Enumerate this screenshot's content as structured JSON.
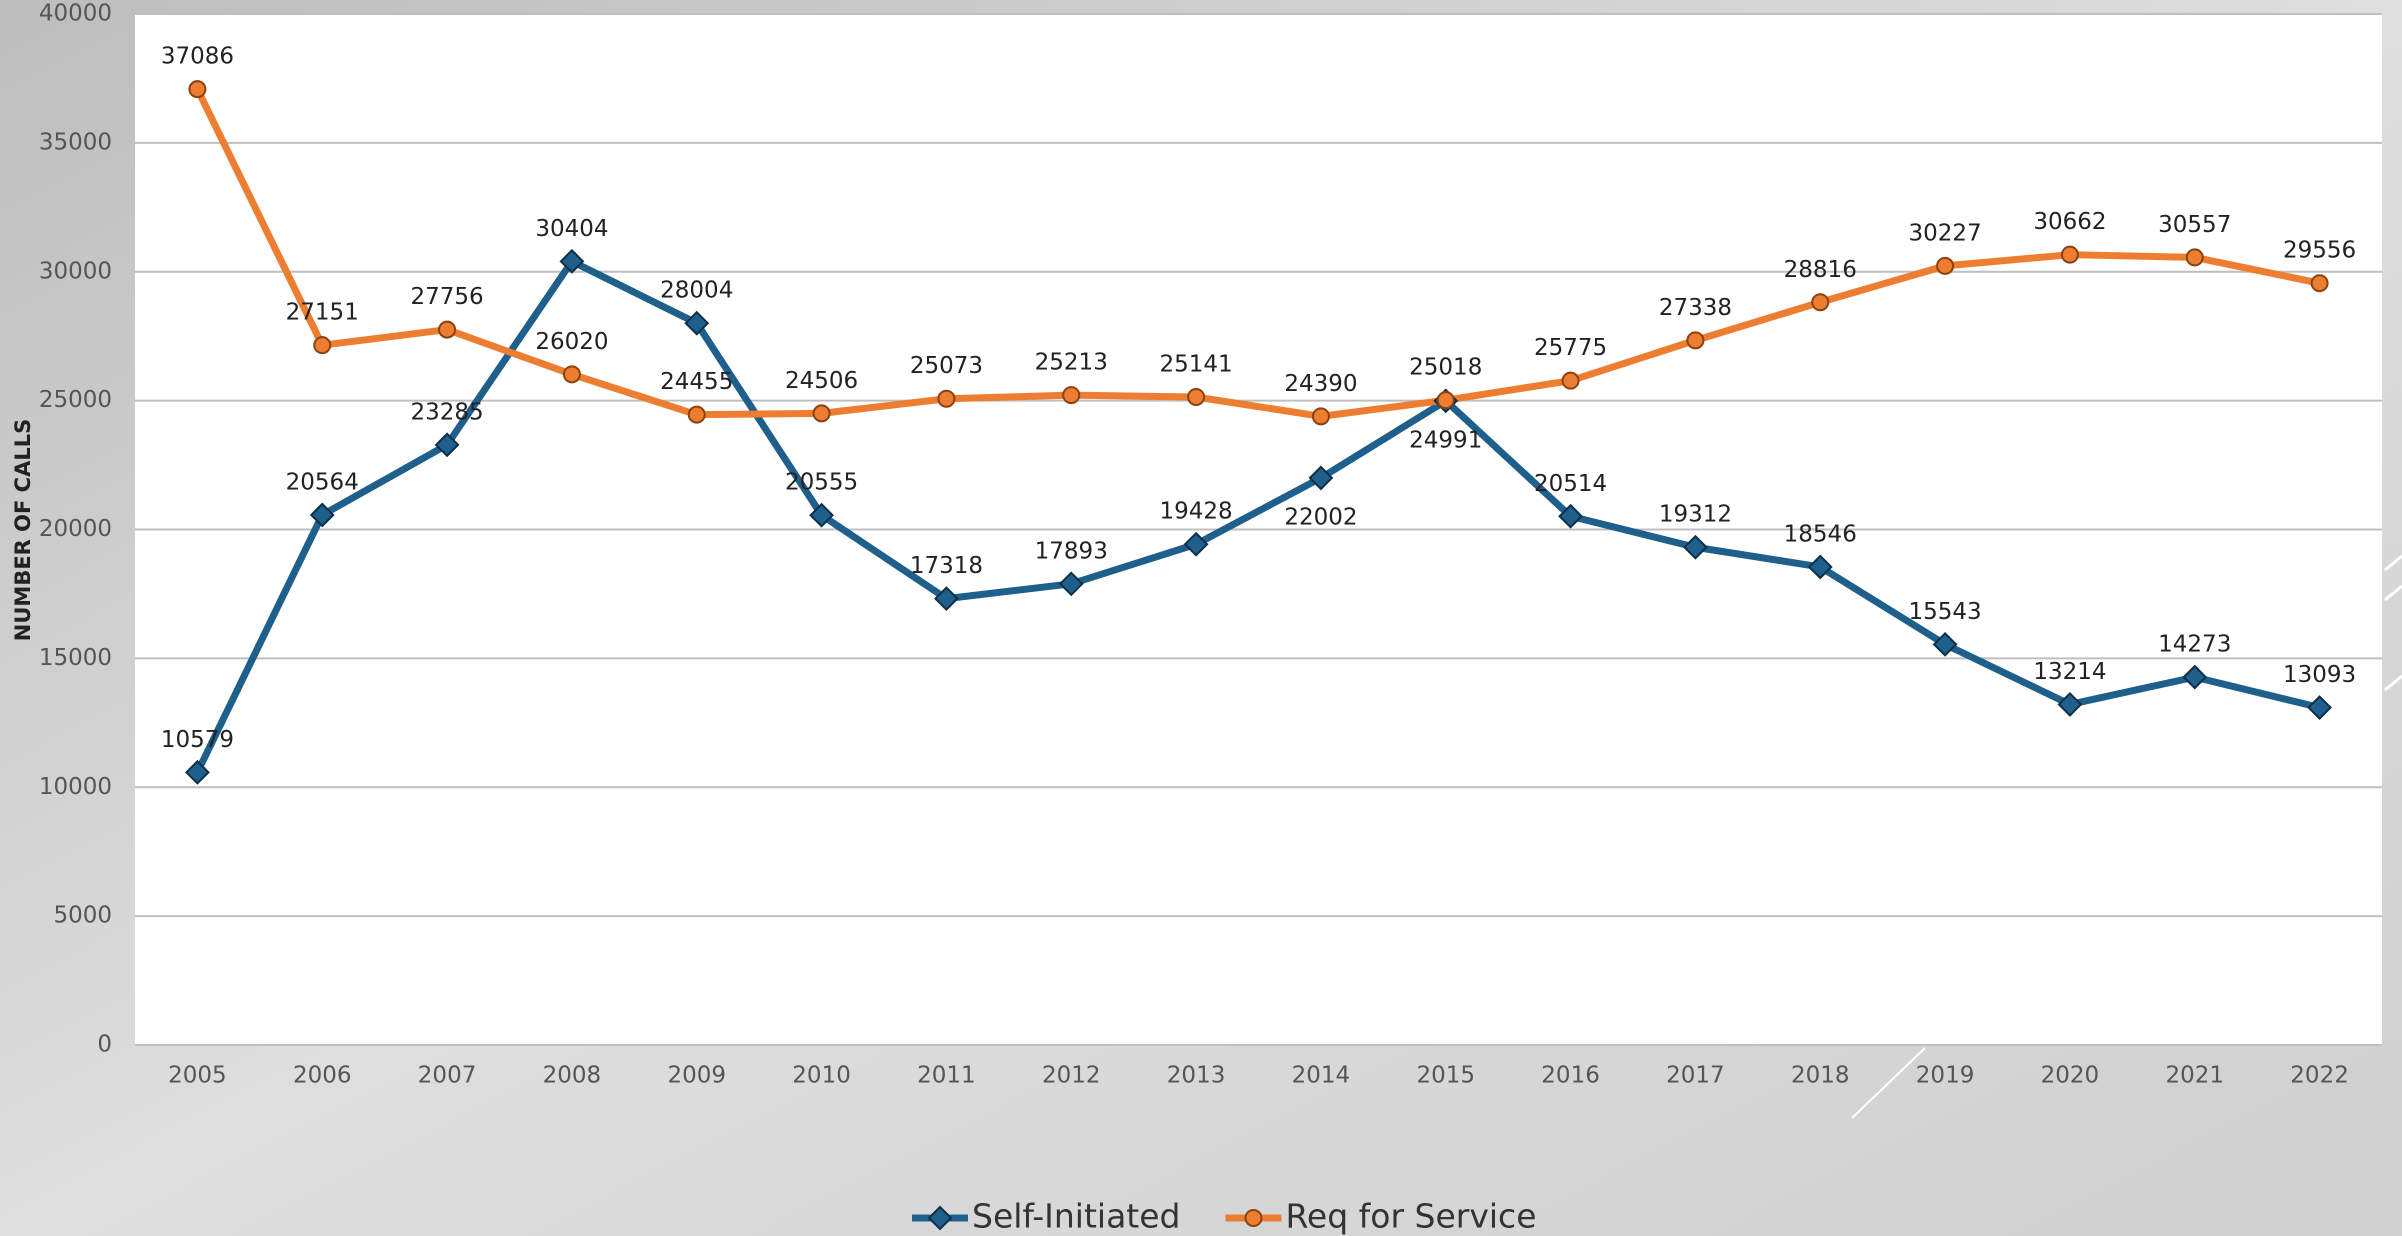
{
  "chart_data": {
    "type": "line",
    "ylabel": "NUMBER OF CALLS",
    "categories": [
      "2005",
      "2006",
      "2007",
      "2008",
      "2009",
      "2010",
      "2011",
      "2012",
      "2013",
      "2014",
      "2015",
      "2016",
      "2017",
      "2018",
      "2019",
      "2020",
      "2021",
      "2022"
    ],
    "series": [
      {
        "name": "Self-Initiated",
        "color": "#1f5f8b",
        "marker": "diamond",
        "values": [
          10579,
          20564,
          23285,
          30404,
          28004,
          20555,
          17318,
          17893,
          19428,
          22002,
          24991,
          20514,
          19312,
          18546,
          15543,
          13214,
          14273,
          13093
        ]
      },
      {
        "name": "Req for Service",
        "color": "#ed7d31",
        "marker": "circle",
        "values": [
          37086,
          27151,
          27756,
          26020,
          24455,
          24506,
          25073,
          25213,
          25141,
          24390,
          25018,
          25775,
          27338,
          28816,
          30227,
          30662,
          30557,
          29556
        ]
      }
    ],
    "ylim": [
      0,
      40000
    ],
    "yticks": [
      0,
      5000,
      10000,
      15000,
      20000,
      25000,
      30000,
      35000,
      40000
    ],
    "grid": true,
    "legend": "bottom"
  }
}
